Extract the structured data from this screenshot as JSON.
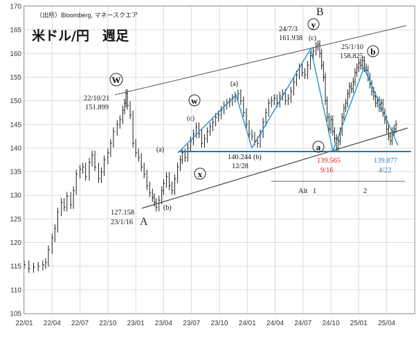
{
  "chart_data": {
    "type": "candlestick",
    "source": "（出所）Bloomberg, マネースクエア",
    "title": "米ドル/円　週足",
    "x_ticks": [
      "22/01",
      "22/04",
      "22/07",
      "22/10",
      "23/01",
      "23/04",
      "23/07",
      "23/10",
      "24/01",
      "24/04",
      "24/07",
      "24/10",
      "25/01",
      "25/04"
    ],
    "y_ticks": [
      "105",
      "110",
      "115",
      "120",
      "125",
      "130",
      "135",
      "140",
      "145",
      "150",
      "155",
      "160",
      "165",
      "170"
    ],
    "ylim": [
      105,
      170
    ],
    "grid": true,
    "price_points": [
      [
        0,
        115.3
      ],
      [
        0.5,
        114.5
      ],
      [
        1,
        114.8
      ],
      [
        1.5,
        115.0
      ],
      [
        2,
        115.3
      ],
      [
        2.3,
        115.8
      ],
      [
        2.6,
        118.5
      ],
      [
        3,
        121.0
      ],
      [
        3.3,
        123.0
      ],
      [
        3.6,
        126.5
      ],
      [
        4,
        128.5
      ],
      [
        4.3,
        127.5
      ],
      [
        4.6,
        129.8
      ],
      [
        5,
        128.0
      ],
      [
        5.3,
        131.0
      ],
      [
        5.6,
        134.5
      ],
      [
        6,
        135.5
      ],
      [
        6.3,
        136.0
      ],
      [
        6.6,
        134.0
      ],
      [
        7,
        137.0
      ],
      [
        7.3,
        138.5
      ],
      [
        7.6,
        136.0
      ],
      [
        8,
        133.5
      ],
      [
        8.3,
        135.0
      ],
      [
        8.6,
        137.5
      ],
      [
        9,
        139.0
      ],
      [
        9.3,
        141.0
      ],
      [
        9.6,
        143.5
      ],
      [
        10,
        145.0
      ],
      [
        10.3,
        146.0
      ],
      [
        10.6,
        148.0
      ],
      [
        10.8,
        149.5
      ],
      [
        10.95,
        151.5
      ],
      [
        11.1,
        149.0
      ],
      [
        11.4,
        147.0
      ],
      [
        11.7,
        141.0
      ],
      [
        12,
        139.0
      ],
      [
        12.3,
        138.0
      ],
      [
        12.6,
        136.0
      ],
      [
        12.9,
        134.5
      ],
      [
        13.2,
        132.0
      ],
      [
        13.5,
        130.5
      ],
      [
        13.8,
        129.5
      ],
      [
        14,
        128.5
      ],
      [
        14.2,
        127.5
      ],
      [
        14.5,
        129.0
      ],
      [
        14.8,
        131.0
      ],
      [
        15,
        132.5
      ],
      [
        15.3,
        134.0
      ],
      [
        15.6,
        132.0
      ],
      [
        15.9,
        131.0
      ],
      [
        16.2,
        133.5
      ],
      [
        16.5,
        136.0
      ],
      [
        16.8,
        137.5
      ],
      [
        17,
        139.0
      ],
      [
        17.3,
        138.0
      ],
      [
        17.6,
        140.0
      ],
      [
        17.9,
        141.5
      ],
      [
        18.2,
        143.0
      ],
      [
        18.5,
        144.5
      ],
      [
        18.8,
        143.0
      ],
      [
        19.1,
        141.0
      ],
      [
        19.4,
        142.0
      ],
      [
        19.7,
        143.5
      ],
      [
        20,
        144.5
      ],
      [
        20.3,
        145.5
      ],
      [
        20.6,
        146.5
      ],
      [
        20.9,
        147.0
      ],
      [
        21.2,
        148.0
      ],
      [
        21.5,
        149.0
      ],
      [
        21.8,
        149.5
      ],
      [
        22.1,
        149.8
      ],
      [
        22.4,
        150.5
      ],
      [
        22.7,
        151.0
      ],
      [
        23,
        151.5
      ],
      [
        23.3,
        150.0
      ],
      [
        23.6,
        147.5
      ],
      [
        23.9,
        145.0
      ],
      [
        24.2,
        143.0
      ],
      [
        24.5,
        142.5
      ],
      [
        24.8,
        141.5
      ],
      [
        25.1,
        141.0
      ],
      [
        25.4,
        143.0
      ],
      [
        25.7,
        145.5
      ],
      [
        26,
        147.5
      ],
      [
        26.3,
        149.5
      ],
      [
        26.6,
        150.0
      ],
      [
        26.9,
        150.5
      ],
      [
        27.2,
        149.5
      ],
      [
        27.5,
        151.0
      ],
      [
        27.8,
        151.5
      ],
      [
        28.1,
        150.0
      ],
      [
        28.4,
        150.5
      ],
      [
        28.7,
        152.0
      ],
      [
        29,
        154.0
      ],
      [
        29.3,
        155.5
      ],
      [
        29.6,
        157.0
      ],
      [
        29.9,
        156.0
      ],
      [
        30.2,
        155.5
      ],
      [
        30.5,
        157.5
      ],
      [
        30.8,
        159.5
      ],
      [
        31.1,
        160.5
      ],
      [
        31.4,
        161.5
      ],
      [
        31.6,
        161.9
      ],
      [
        31.8,
        160.0
      ],
      [
        32,
        157.5
      ],
      [
        32.2,
        155.0
      ],
      [
        32.4,
        150.0
      ],
      [
        32.6,
        146.5
      ],
      [
        32.8,
        144.0
      ],
      [
        33,
        146.0
      ],
      [
        33.2,
        143.5
      ],
      [
        33.4,
        142.0
      ],
      [
        33.6,
        140.0
      ],
      [
        33.8,
        141.5
      ],
      [
        34,
        143.5
      ],
      [
        34.2,
        146.5
      ],
      [
        34.4,
        148.5
      ],
      [
        34.6,
        149.5
      ],
      [
        34.8,
        151.5
      ],
      [
        35,
        153.0
      ],
      [
        35.2,
        152.5
      ],
      [
        35.4,
        154.0
      ],
      [
        35.6,
        156.0
      ],
      [
        35.8,
        157.0
      ],
      [
        36,
        158.0
      ],
      [
        36.2,
        157.5
      ],
      [
        36.4,
        158.5
      ],
      [
        36.6,
        157.0
      ],
      [
        36.8,
        156.5
      ],
      [
        37,
        155.0
      ],
      [
        37.2,
        153.5
      ],
      [
        37.4,
        152.0
      ],
      [
        37.6,
        151.0
      ],
      [
        37.8,
        149.5
      ],
      [
        38,
        150.0
      ],
      [
        38.2,
        148.5
      ],
      [
        38.4,
        149.5
      ],
      [
        38.6,
        147.5
      ],
      [
        38.8,
        146.0
      ],
      [
        39,
        144.0
      ],
      [
        39.2,
        142.5
      ],
      [
        39.4,
        141.5
      ],
      [
        39.6,
        143.5
      ],
      [
        39.8,
        144.0
      ],
      [
        40,
        145.0
      ]
    ],
    "annotations": {
      "source": "（出所）Bloomberg, マネースクエア",
      "title": "米ドル/円　週足",
      "W": "W",
      "w_small": "w",
      "x_small": "x",
      "y_small": "y",
      "a_small": "a",
      "b_small": "b",
      "B": "B",
      "A": "A",
      "p_2210_date": "22/10/21",
      "p_2210_val": "151.899",
      "p_2301_val": "127.158",
      "p_2301_date": "23/1/16",
      "p_2312_val": "140.244",
      "p_2312_date": "12/28",
      "p_2407_date": "24/7/3",
      "p_2407_val": "161.938",
      "p_2501_date": "25/1/10",
      "p_2501_val": "158.825",
      "p_0916_val": "139.565",
      "p_0916_date": "9/16",
      "p_0422_val": "139.877",
      "p_0422_date": "4/22",
      "lbl_a": "(a)",
      "lbl_b": "(b)",
      "lbl_c": "(c)",
      "alt": "Alt",
      "alt1": "1",
      "alt2": "2"
    }
  }
}
